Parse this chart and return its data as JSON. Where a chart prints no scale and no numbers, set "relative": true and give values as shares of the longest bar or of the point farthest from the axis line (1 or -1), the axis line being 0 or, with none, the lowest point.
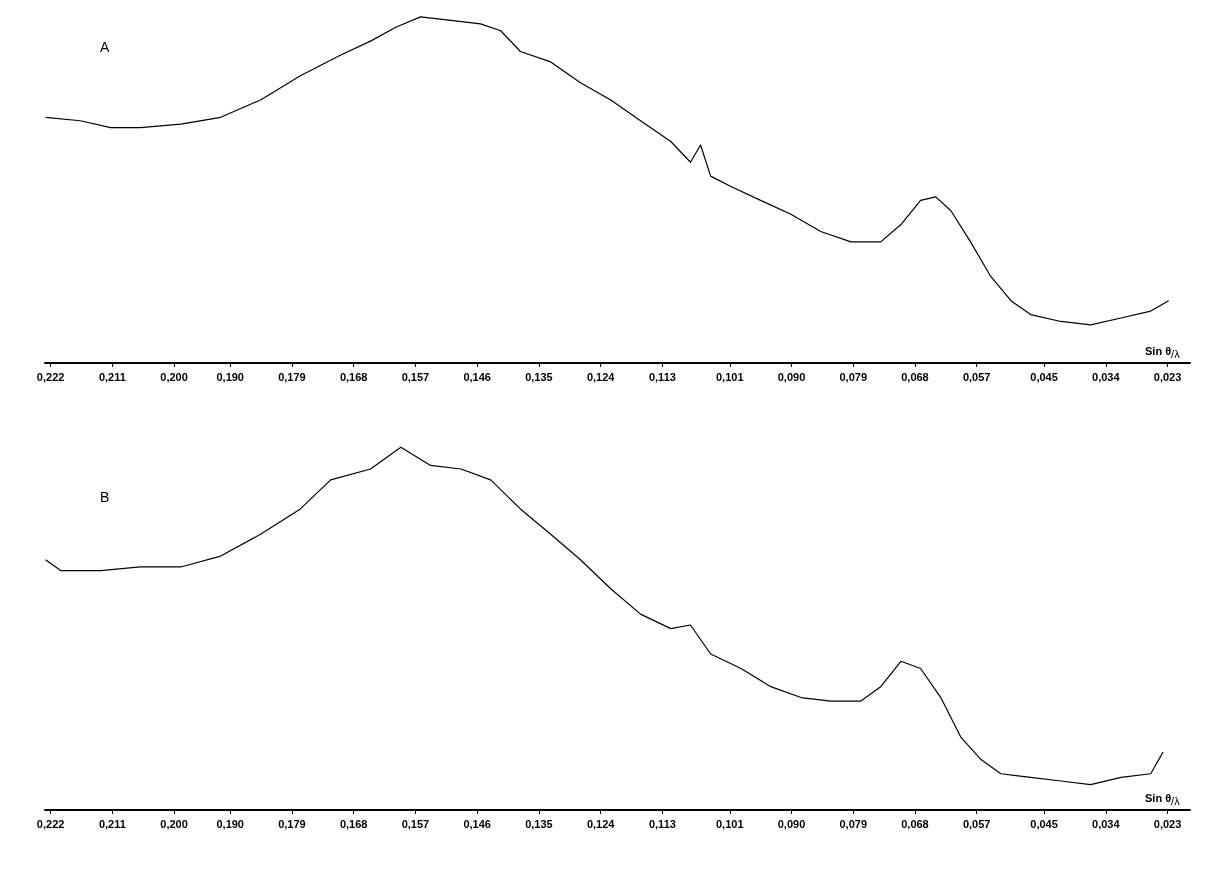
{
  "chart_data": [
    {
      "type": "line",
      "title": "A",
      "xlabel": "Sin θ/λ",
      "relative": true,
      "color": "#000000",
      "xlim": [
        0.223,
        0.019
      ],
      "xticks": [
        {
          "value": 0.222,
          "label": "0,222"
        },
        {
          "value": 0.211,
          "label": "0,211"
        },
        {
          "value": 0.2,
          "label": "0,200"
        },
        {
          "value": 0.19,
          "label": "0,190"
        },
        {
          "value": 0.179,
          "label": "0,179"
        },
        {
          "value": 0.168,
          "label": "0,168"
        },
        {
          "value": 0.157,
          "label": "0,157"
        },
        {
          "value": 0.146,
          "label": "0,146"
        },
        {
          "value": 0.135,
          "label": "0,135"
        },
        {
          "value": 0.124,
          "label": "0,124"
        },
        {
          "value": 0.113,
          "label": "0,113"
        },
        {
          "value": 0.101,
          "label": "0,101"
        },
        {
          "value": 0.09,
          "label": "0,090"
        },
        {
          "value": 0.079,
          "label": "0,079"
        },
        {
          "value": 0.068,
          "label": "0,068"
        },
        {
          "value": 0.057,
          "label": "0,057"
        },
        {
          "value": 0.045,
          "label": "0,045"
        },
        {
          "value": 0.034,
          "label": "0,034"
        },
        {
          "value": 0.023,
          "label": "0,023"
        }
      ],
      "x": [
        0.2229,
        0.2167,
        0.2113,
        0.206,
        0.1988,
        0.1917,
        0.1846,
        0.1775,
        0.1703,
        0.165,
        0.1605,
        0.1561,
        0.1507,
        0.1454,
        0.1418,
        0.1383,
        0.1329,
        0.1276,
        0.1222,
        0.1169,
        0.1115,
        0.108,
        0.1062,
        0.1044,
        0.1008,
        0.0955,
        0.0901,
        0.0848,
        0.0794,
        0.0741,
        0.0705,
        0.067,
        0.0643,
        0.0616,
        0.0581,
        0.0545,
        0.0509,
        0.0474,
        0.042,
        0.0367,
        0.0313,
        0.026,
        0.0228
      ],
      "values": [
        0.71,
        0.7,
        0.68,
        0.68,
        0.69,
        0.71,
        0.76,
        0.83,
        0.89,
        0.93,
        0.97,
        1.0,
        0.99,
        0.98,
        0.96,
        0.9,
        0.87,
        0.81,
        0.76,
        0.7,
        0.64,
        0.58,
        0.63,
        0.54,
        0.51,
        0.47,
        0.43,
        0.38,
        0.35,
        0.35,
        0.4,
        0.47,
        0.48,
        0.44,
        0.35,
        0.25,
        0.18,
        0.14,
        0.12,
        0.11,
        0.13,
        0.15,
        0.18
      ]
    },
    {
      "type": "line",
      "title": "B",
      "xlabel": "Sin θ/λ",
      "relative": true,
      "color": "#000000",
      "xlim": [
        0.223,
        0.019
      ],
      "xticks": [
        {
          "value": 0.222,
          "label": "0,222"
        },
        {
          "value": 0.211,
          "label": "0,211"
        },
        {
          "value": 0.2,
          "label": "0,200"
        },
        {
          "value": 0.19,
          "label": "0,190"
        },
        {
          "value": 0.179,
          "label": "0,179"
        },
        {
          "value": 0.168,
          "label": "0,168"
        },
        {
          "value": 0.157,
          "label": "0,157"
        },
        {
          "value": 0.146,
          "label": "0,146"
        },
        {
          "value": 0.135,
          "label": "0,135"
        },
        {
          "value": 0.124,
          "label": "0,124"
        },
        {
          "value": 0.113,
          "label": "0,113"
        },
        {
          "value": 0.101,
          "label": "0,101"
        },
        {
          "value": 0.09,
          "label": "0,090"
        },
        {
          "value": 0.079,
          "label": "0,079"
        },
        {
          "value": 0.068,
          "label": "0,068"
        },
        {
          "value": 0.057,
          "label": "0,057"
        },
        {
          "value": 0.045,
          "label": "0,045"
        },
        {
          "value": 0.034,
          "label": "0,034"
        },
        {
          "value": 0.023,
          "label": "0,023"
        }
      ],
      "x": [
        0.2229,
        0.2202,
        0.2131,
        0.206,
        0.1988,
        0.1917,
        0.1846,
        0.1775,
        0.1721,
        0.165,
        0.1596,
        0.1543,
        0.1489,
        0.1436,
        0.1383,
        0.1329,
        0.1276,
        0.1222,
        0.1169,
        0.1115,
        0.108,
        0.1044,
        0.099,
        0.0937,
        0.0883,
        0.083,
        0.0777,
        0.0741,
        0.0705,
        0.067,
        0.0634,
        0.0598,
        0.0563,
        0.0527,
        0.0474,
        0.042,
        0.0367,
        0.0313,
        0.026,
        0.0238
      ],
      "values": [
        0.69,
        0.66,
        0.66,
        0.67,
        0.67,
        0.7,
        0.76,
        0.83,
        0.91,
        0.94,
        1.0,
        0.95,
        0.94,
        0.91,
        0.83,
        0.76,
        0.69,
        0.61,
        0.54,
        0.5,
        0.51,
        0.43,
        0.39,
        0.34,
        0.31,
        0.3,
        0.3,
        0.34,
        0.41,
        0.39,
        0.31,
        0.2,
        0.14,
        0.1,
        0.09,
        0.08,
        0.07,
        0.09,
        0.1,
        0.16
      ]
    }
  ]
}
